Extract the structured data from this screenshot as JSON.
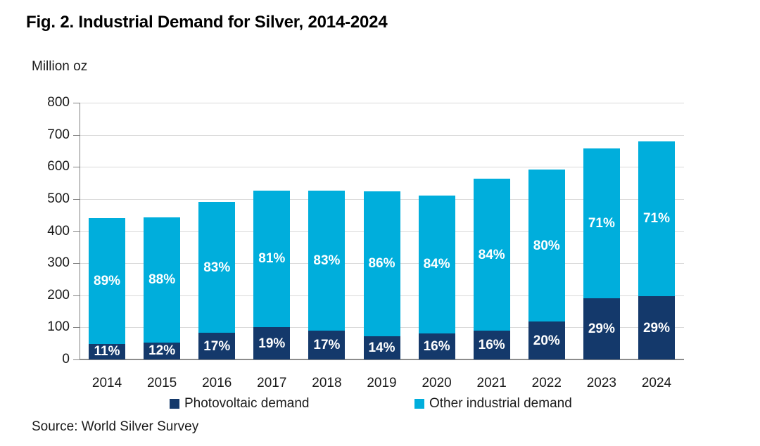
{
  "title": "Fig. 2. Industrial Demand for Silver, 2014-2024",
  "y_axis_unit": "Million oz",
  "source": "Source: World Silver Survey",
  "colors": {
    "photovoltaic": "#14396B",
    "other_industrial": "#00AEDC",
    "gridline": "#D9D9D9",
    "axis": "#808080",
    "bar_label_text": "#FFFFFF"
  },
  "legend": [
    {
      "label": "Photovoltaic demand"
    },
    {
      "label": "Other industrial demand"
    }
  ],
  "chart_data": {
    "type": "bar",
    "stacked": true,
    "title": "Fig. 2. Industrial Demand for Silver, 2014-2024",
    "xlabel": "",
    "ylabel": "Million oz",
    "ylim": [
      0,
      800
    ],
    "ytick_step": 100,
    "yticks": [
      0,
      100,
      200,
      300,
      400,
      500,
      600,
      700,
      800
    ],
    "grid": true,
    "legend_position": "bottom",
    "categories": [
      "2014",
      "2015",
      "2016",
      "2017",
      "2018",
      "2019",
      "2020",
      "2021",
      "2022",
      "2023",
      "2024"
    ],
    "totals": [
      441,
      443,
      490,
      527,
      525,
      524,
      511,
      563,
      592,
      657,
      680
    ],
    "series": [
      {
        "name": "Photovoltaic demand",
        "color": "#14396B",
        "values": [
          49,
          53,
          83,
          100,
          89,
          73,
          82,
          90,
          118,
          190,
          197
        ],
        "labels": [
          "11%",
          "12%",
          "17%",
          "19%",
          "17%",
          "14%",
          "16%",
          "16%",
          "20%",
          "29%",
          "29%"
        ]
      },
      {
        "name": "Other industrial demand",
        "color": "#00AEDC",
        "values": [
          392,
          390,
          407,
          427,
          436,
          451,
          429,
          473,
          474,
          467,
          483
        ],
        "labels": [
          "89%",
          "88%",
          "83%",
          "81%",
          "83%",
          "86%",
          "84%",
          "84%",
          "80%",
          "71%",
          "71%"
        ]
      }
    ]
  }
}
